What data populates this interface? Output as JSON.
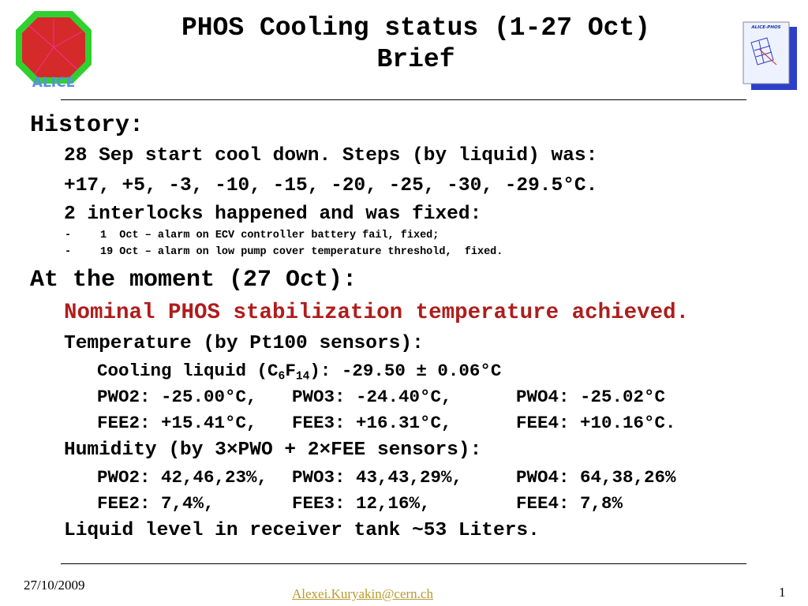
{
  "header": {
    "title": [
      "PHOS Cooling status (1-27 Oct)",
      "Brief"
    ],
    "logo_left": "ALICE",
    "logo_right": "ALICE-PHOS"
  },
  "history": {
    "heading": "History:",
    "lines": [
      "28 Sep start cool down. Steps (by liquid) was:",
      "+17, +5, -3, -10, -15, -20, -25, -30, -29.5°C.",
      "2 interlocks happened and was fixed:"
    ],
    "items": [
      {
        "bullet": "-",
        "text": "1  Oct – alarm on ECV controller battery fail, fixed;"
      },
      {
        "bullet": "-",
        "text": "19 Oct – alarm on low pump cover temperature threshold,  fixed."
      }
    ]
  },
  "moment": {
    "heading": "At the moment (27 Oct):",
    "highlight": "Nominal PHOS stabilization temperature achieved.",
    "temperature": {
      "heading": "Temperature (by Pt100 sensors):",
      "liquid": [
        "Cooling liquid (C",
        "6",
        "F",
        "14",
        "): -29.50 ± 0.06°C"
      ],
      "rows": [
        [
          "PWO2: -25.00°C,",
          "PWO3: -24.40°C,",
          "PWO4: -25.02°C"
        ],
        [
          "FEE2: +15.41°C,",
          "FEE3: +16.31°C,",
          "FEE4: +10.16°C."
        ]
      ]
    },
    "humidity": {
      "heading": "Humidity (by 3×PWO + 2×FEE sensors):",
      "rows": [
        [
          "PWO2: 42,46,23%,",
          "PWO3: 43,43,29%,",
          "PWO4: 64,38,26%"
        ],
        [
          "FEE2: 7,4%,",
          "FEE3: 12,16%,",
          "FEE4: 7,8%"
        ]
      ]
    },
    "level": "Liquid level in receiver tank ~53 Liters."
  },
  "footer": {
    "date": "27/10/2009",
    "author": "Alexei.Kuryakin@cern.ch",
    "page": "1"
  }
}
